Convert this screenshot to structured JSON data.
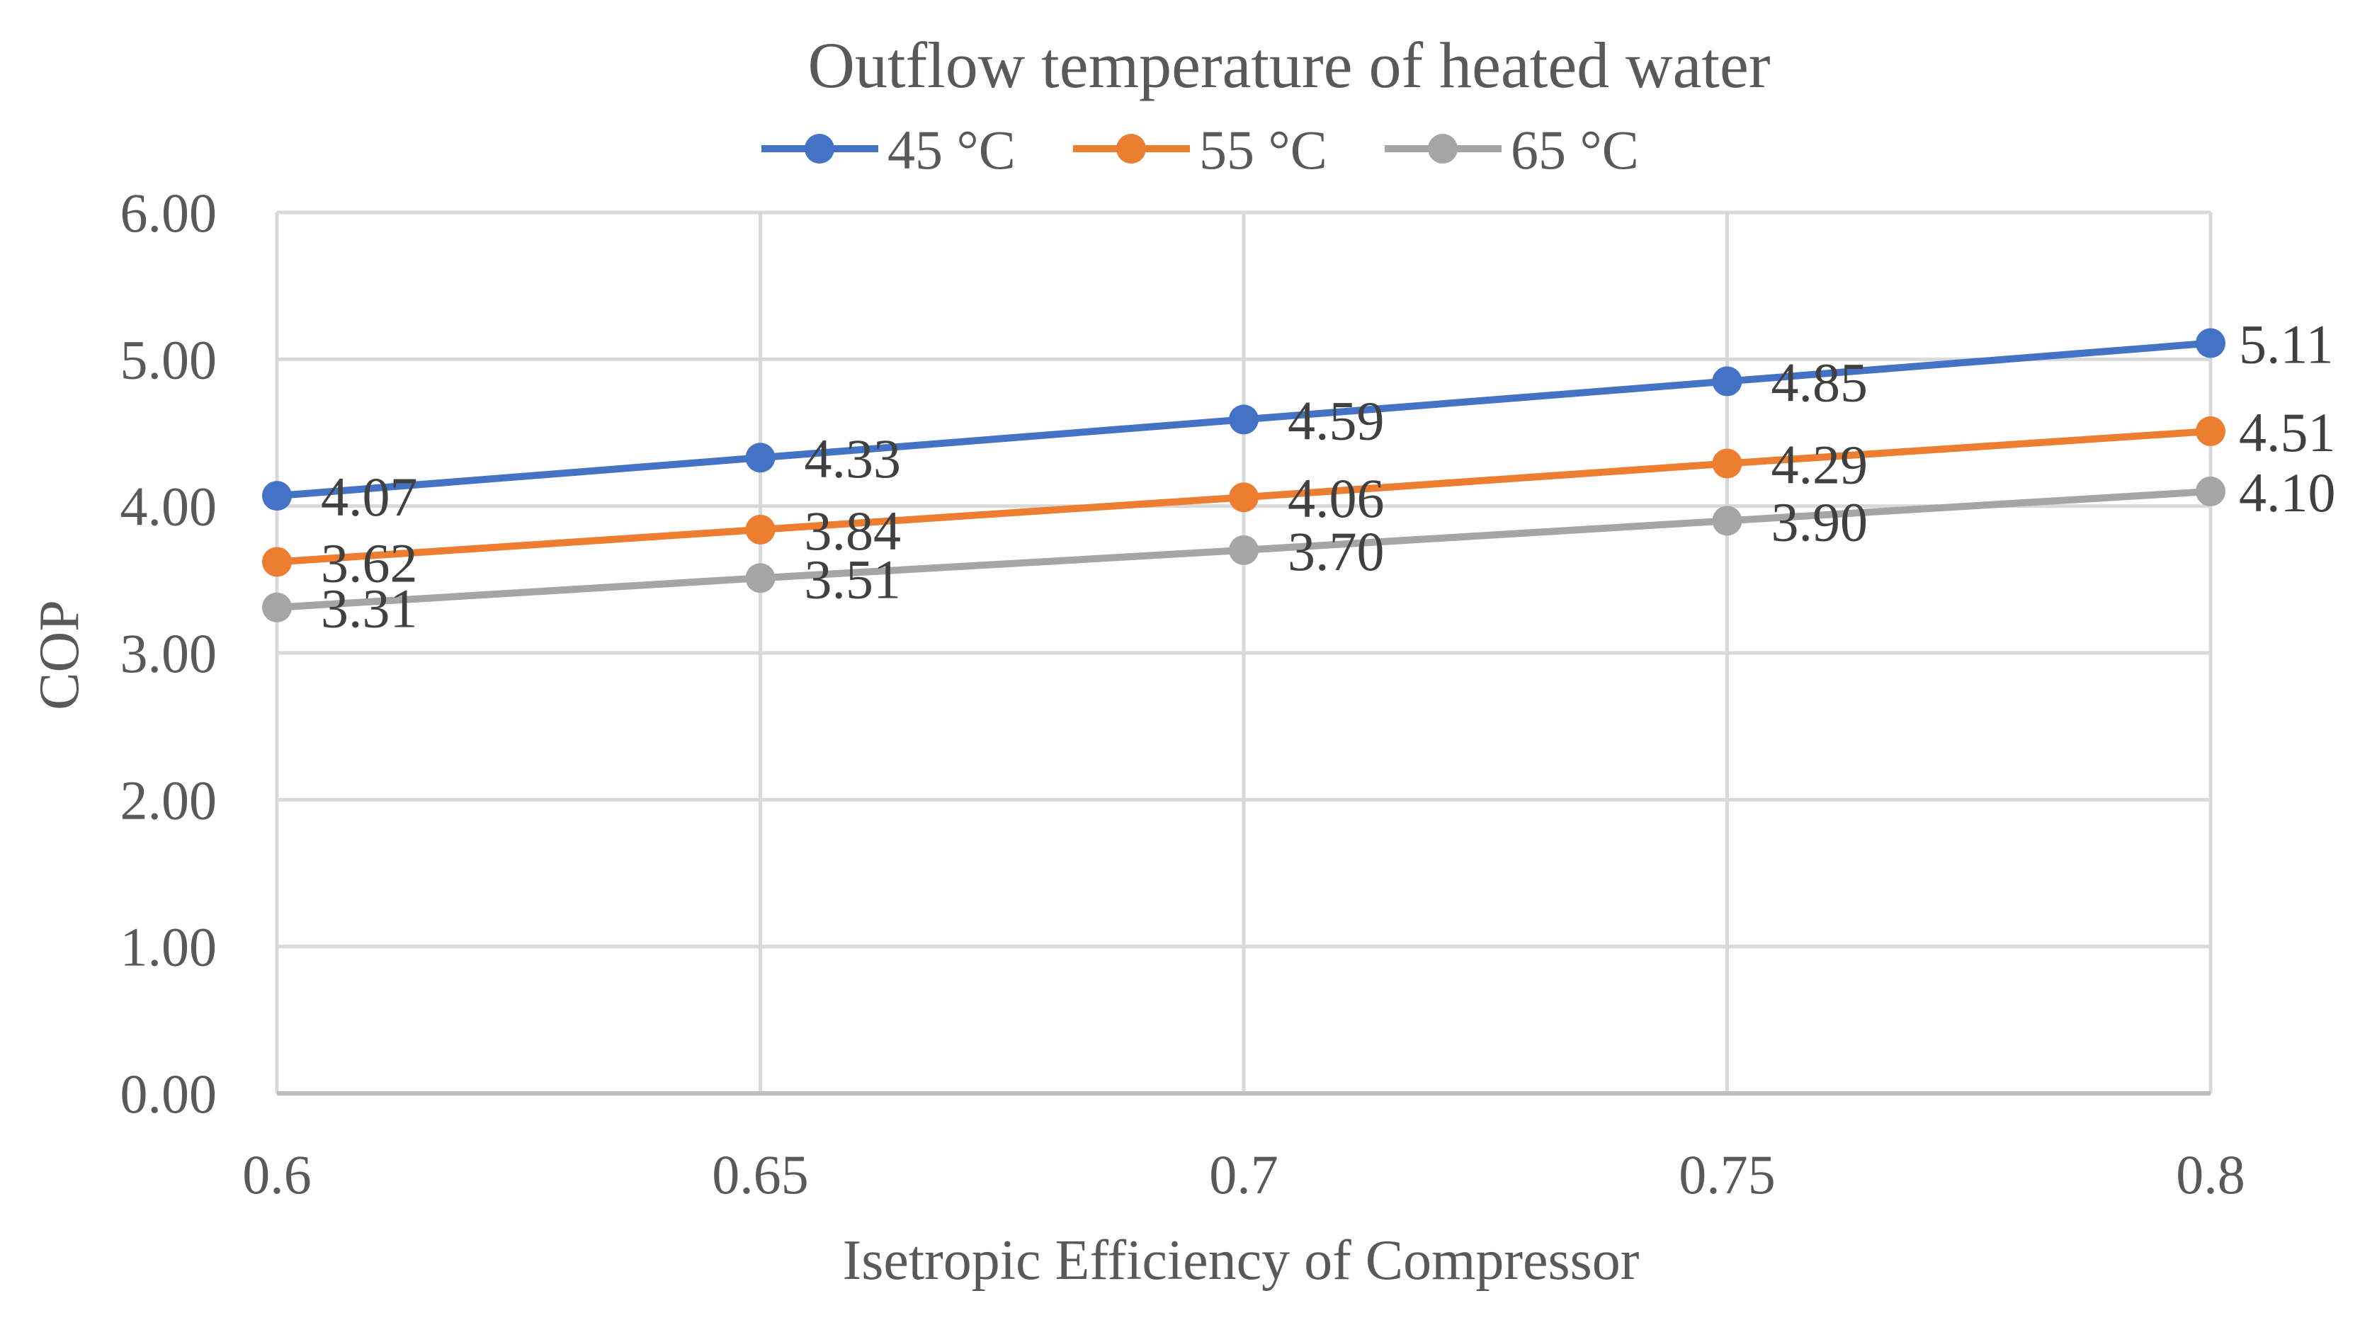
{
  "chart_data": {
    "type": "line",
    "title": "Outflow temperature of heated water",
    "xlabel": "Isetropic Efficiency of Compressor",
    "ylabel": "COP",
    "categories": [
      "0.6",
      "0.65",
      "0.7",
      "0.75",
      "0.8"
    ],
    "y_ticks": [
      "0.00",
      "1.00",
      "2.00",
      "3.00",
      "4.00",
      "5.00",
      "6.00"
    ],
    "ylim": [
      0,
      6
    ],
    "grid": true,
    "legend_position": "top",
    "series": [
      {
        "name": "45 °C",
        "color": "#4472c4",
        "values": [
          4.07,
          4.33,
          4.59,
          4.85,
          5.11
        ],
        "labels": [
          "4.07",
          "4.33",
          "4.59",
          "4.85",
          "5.11"
        ]
      },
      {
        "name": "55 °C",
        "color": "#ed7d31",
        "values": [
          3.62,
          3.84,
          4.06,
          4.29,
          4.51
        ],
        "labels": [
          "3.62",
          "3.84",
          "4.06",
          "4.29",
          "4.51"
        ]
      },
      {
        "name": "65 °C",
        "color": "#a5a5a5",
        "values": [
          3.31,
          3.51,
          3.7,
          3.9,
          4.1
        ],
        "labels": [
          "3.31",
          "3.51",
          "3.70",
          "3.90",
          "4.10"
        ]
      }
    ]
  }
}
